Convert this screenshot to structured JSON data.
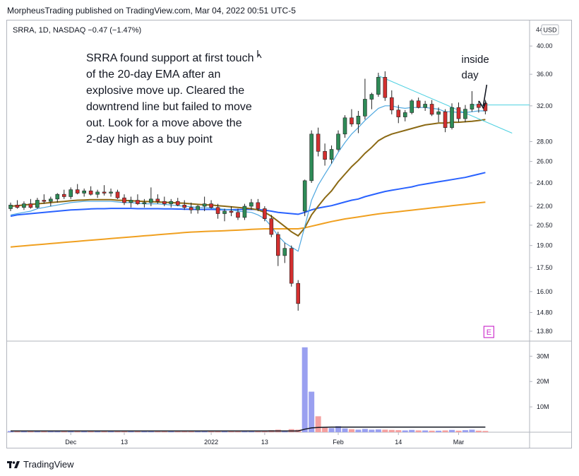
{
  "header": {
    "text": "MorpheusTrading published on TradingView.com, Mar 04, 2022 00:51 UTC-5"
  },
  "symbol_line": "SRRA, 1D, NASDAQ  −0.47 (−1.47%)",
  "currency_badge": "USD",
  "currency_prefix": "44",
  "annotation": {
    "lines": [
      "SRRA found support at first touch",
      "of the 20-day EMA after an",
      "explosive move up.  Cleared the",
      "downtrend line but failed to move",
      "out.  Look for a move above the",
      "2-day high as a buy point"
    ]
  },
  "callout": {
    "lines": [
      "inside",
      "day"
    ]
  },
  "earnings_marker": "E",
  "footer": {
    "brand": "TradingView",
    "logo_icon": "tradingview-logo-icon"
  },
  "colors": {
    "up": "#2e8b57",
    "down": "#d32f2f",
    "ema10": "#4fa8e0",
    "ema20": "#8b6914",
    "ema50": "#2962ff",
    "ema200": "#f0a020",
    "trendline": "#4dd0e1",
    "vol_up": "#9aa0f0",
    "vol_down": "#f4a0a0",
    "earnings": "#cc33cc"
  },
  "chart_data": {
    "type": "candlestick",
    "yscale": "log",
    "ylim": [
      13.3,
      44
    ],
    "y_ticks": [
      40.0,
      36.0,
      32.0,
      28.0,
      26.0,
      24.0,
      22.0,
      20.5,
      19.0,
      17.5,
      16.0,
      14.8,
      13.8
    ],
    "y_tick_labels": [
      "40.00",
      "36.00",
      "32.00",
      "28.00",
      "26.00",
      "24.00",
      "22.00",
      "20.50",
      "19.00",
      "17.50",
      "16.00",
      "14.80",
      "13.80"
    ],
    "x_ticks": [
      {
        "label": "Dec",
        "index": 9
      },
      {
        "label": "13",
        "index": 17
      },
      {
        "label": "2022",
        "index": 30
      },
      {
        "label": "13",
        "index": 38
      },
      {
        "label": "Feb",
        "index": 49
      },
      {
        "label": "14",
        "index": 58
      },
      {
        "label": "Mar",
        "index": 67
      }
    ],
    "candles": [
      [
        21.8,
        22.3,
        21.6,
        22.1
      ],
      [
        22.1,
        22.5,
        21.8,
        21.9
      ],
      [
        21.9,
        22.4,
        21.7,
        22.2
      ],
      [
        22.2,
        22.6,
        21.8,
        21.9
      ],
      [
        21.9,
        22.7,
        21.8,
        22.5
      ],
      [
        22.5,
        23.0,
        22.2,
        22.4
      ],
      [
        22.4,
        22.8,
        22.0,
        22.6
      ],
      [
        22.6,
        23.1,
        22.3,
        23.0
      ],
      [
        23.0,
        23.4,
        22.6,
        22.8
      ],
      [
        22.8,
        23.6,
        22.6,
        23.4
      ],
      [
        23.4,
        23.9,
        23.0,
        23.1
      ],
      [
        23.1,
        23.5,
        22.8,
        23.3
      ],
      [
        23.3,
        23.7,
        22.9,
        23.0
      ],
      [
        23.0,
        23.4,
        22.7,
        23.2
      ],
      [
        23.2,
        23.8,
        22.9,
        23.1
      ],
      [
        23.1,
        23.5,
        22.8,
        23.2
      ],
      [
        23.2,
        23.4,
        22.6,
        22.7
      ],
      [
        22.7,
        23.0,
        22.1,
        22.3
      ],
      [
        22.3,
        22.8,
        21.9,
        22.5
      ],
      [
        22.5,
        23.0,
        22.1,
        22.2
      ],
      [
        22.2,
        22.6,
        21.9,
        22.3
      ],
      [
        22.3,
        23.6,
        22.0,
        22.6
      ],
      [
        22.6,
        23.0,
        22.2,
        22.4
      ],
      [
        22.4,
        22.8,
        22.0,
        22.2
      ],
      [
        22.2,
        22.6,
        21.9,
        22.4
      ],
      [
        22.4,
        22.7,
        22.0,
        22.1
      ],
      [
        22.1,
        22.5,
        21.7,
        21.9
      ],
      [
        21.9,
        22.3,
        21.4,
        21.7
      ],
      [
        21.7,
        22.1,
        21.4,
        22.0
      ],
      [
        22.0,
        22.8,
        21.6,
        22.2
      ],
      [
        22.2,
        22.5,
        21.8,
        21.9
      ],
      [
        21.9,
        22.2,
        21.0,
        21.4
      ],
      [
        21.4,
        21.8,
        20.8,
        21.6
      ],
      [
        21.6,
        22.0,
        21.2,
        21.5
      ],
      [
        21.5,
        21.8,
        20.9,
        21.1
      ],
      [
        21.1,
        22.2,
        20.9,
        22.0
      ],
      [
        22.0,
        22.6,
        21.7,
        22.3
      ],
      [
        22.3,
        22.6,
        21.6,
        21.8
      ],
      [
        21.8,
        22.0,
        20.8,
        21.0
      ],
      [
        21.0,
        21.3,
        19.6,
        19.8
      ],
      [
        19.8,
        20.0,
        17.6,
        18.3
      ],
      [
        18.3,
        19.2,
        17.8,
        18.8
      ],
      [
        18.8,
        19.0,
        16.3,
        16.5
      ],
      [
        16.5,
        16.7,
        14.9,
        15.3
      ],
      [
        21.6,
        24.3,
        21.2,
        24.2
      ],
      [
        24.2,
        29.2,
        24.0,
        28.8
      ],
      [
        28.8,
        29.5,
        26.5,
        27.0
      ],
      [
        27.0,
        27.8,
        25.6,
        26.2
      ],
      [
        26.2,
        27.6,
        25.8,
        27.2
      ],
      [
        27.2,
        29.2,
        27.0,
        28.8
      ],
      [
        28.8,
        30.9,
        28.4,
        30.6
      ],
      [
        30.6,
        31.6,
        29.6,
        29.9
      ],
      [
        29.9,
        31.4,
        28.9,
        30.8
      ],
      [
        30.8,
        35.4,
        30.4,
        32.8
      ],
      [
        32.8,
        33.6,
        31.6,
        33.4
      ],
      [
        33.4,
        36.2,
        33.1,
        35.6
      ],
      [
        35.6,
        36.4,
        32.6,
        33.0
      ],
      [
        33.0,
        33.9,
        31.0,
        31.5
      ],
      [
        31.5,
        32.1,
        30.0,
        30.7
      ],
      [
        30.7,
        31.5,
        30.2,
        31.2
      ],
      [
        31.2,
        32.8,
        31.0,
        32.6
      ],
      [
        32.6,
        33.0,
        31.7,
        31.8
      ],
      [
        31.8,
        32.6,
        31.4,
        32.2
      ],
      [
        32.2,
        32.7,
        30.8,
        31.0
      ],
      [
        31.0,
        31.8,
        30.1,
        31.3
      ],
      [
        31.3,
        31.6,
        29.0,
        29.5
      ],
      [
        29.5,
        32.3,
        29.3,
        31.8
      ],
      [
        31.8,
        32.4,
        30.1,
        30.5
      ],
      [
        30.5,
        32.1,
        30.1,
        31.6
      ],
      [
        31.6,
        33.8,
        31.3,
        32.2
      ],
      [
        32.2,
        32.6,
        31.2,
        31.8
      ],
      [
        32.3,
        32.7,
        31.0,
        31.4
      ]
    ],
    "ema10": [
      21.3,
      21.4,
      21.5,
      21.6,
      21.8,
      21.9,
      22.0,
      22.1,
      22.2,
      22.3,
      22.35,
      22.4,
      22.4,
      22.4,
      22.4,
      22.4,
      22.35,
      22.3,
      22.3,
      22.25,
      22.2,
      22.2,
      22.2,
      22.15,
      22.1,
      22.05,
      22.0,
      21.95,
      21.9,
      21.9,
      21.85,
      21.8,
      21.75,
      21.7,
      21.6,
      21.55,
      21.5,
      21.3,
      21.0,
      20.4,
      19.7,
      19.2,
      18.9,
      18.6,
      20.4,
      22.5,
      23.8,
      24.8,
      25.8,
      26.9,
      27.9,
      28.8,
      29.5,
      30.3,
      31.0,
      31.7,
      32.0,
      32.0,
      31.8,
      31.7,
      31.8,
      31.8,
      31.8,
      31.7,
      31.6,
      31.3,
      31.3,
      31.2,
      31.2,
      31.3,
      31.4,
      31.4
    ],
    "ema20": [
      22.0,
      22.05,
      22.1,
      22.15,
      22.2,
      22.25,
      22.3,
      22.35,
      22.4,
      22.45,
      22.5,
      22.52,
      22.55,
      22.55,
      22.55,
      22.55,
      22.5,
      22.48,
      22.45,
      22.42,
      22.4,
      22.38,
      22.35,
      22.33,
      22.3,
      22.27,
      22.25,
      22.2,
      22.15,
      22.12,
      22.1,
      22.05,
      22.0,
      21.95,
      21.9,
      21.85,
      21.8,
      21.7,
      21.5,
      21.2,
      20.8,
      20.4,
      20.0,
      19.7,
      20.3,
      21.3,
      22.0,
      22.7,
      23.3,
      24.1,
      24.8,
      25.5,
      26.1,
      26.8,
      27.4,
      28.1,
      28.5,
      28.8,
      29.0,
      29.2,
      29.4,
      29.6,
      29.8,
      29.9,
      30.0,
      30.0,
      30.1,
      30.1,
      30.15,
      30.2,
      30.3,
      30.4
    ],
    "ema50": [
      21.2,
      21.3,
      21.35,
      21.4,
      21.45,
      21.5,
      21.55,
      21.6,
      21.65,
      21.7,
      21.72,
      21.75,
      21.78,
      21.8,
      21.8,
      21.82,
      21.82,
      21.82,
      21.82,
      21.8,
      21.8,
      21.8,
      21.8,
      21.78,
      21.78,
      21.77,
      21.76,
      21.75,
      21.74,
      21.74,
      21.74,
      21.73,
      21.72,
      21.72,
      21.73,
      21.74,
      21.75,
      21.73,
      21.68,
      21.6,
      21.5,
      21.45,
      21.4,
      21.35,
      21.5,
      21.7,
      21.85,
      21.95,
      22.05,
      22.2,
      22.35,
      22.5,
      22.6,
      22.8,
      22.95,
      23.1,
      23.25,
      23.35,
      23.45,
      23.55,
      23.65,
      23.8,
      23.9,
      24.0,
      24.1,
      24.2,
      24.3,
      24.4,
      24.5,
      24.65,
      24.8,
      24.95
    ],
    "ema200": [
      18.9,
      18.94,
      18.98,
      19.02,
      19.06,
      19.1,
      19.14,
      19.18,
      19.22,
      19.26,
      19.3,
      19.34,
      19.38,
      19.42,
      19.46,
      19.5,
      19.54,
      19.58,
      19.62,
      19.66,
      19.7,
      19.74,
      19.78,
      19.82,
      19.86,
      19.9,
      19.94,
      19.98,
      20.0,
      20.02,
      20.04,
      20.06,
      20.08,
      20.1,
      20.12,
      20.15,
      20.18,
      20.2,
      20.22,
      20.22,
      20.22,
      20.22,
      20.22,
      20.22,
      20.3,
      20.42,
      20.54,
      20.66,
      20.78,
      20.88,
      20.98,
      21.06,
      21.14,
      21.22,
      21.3,
      21.38,
      21.44,
      21.5,
      21.56,
      21.62,
      21.68,
      21.74,
      21.8,
      21.86,
      21.92,
      21.98,
      22.04,
      22.1,
      22.16,
      22.22,
      22.28,
      22.34
    ],
    "trendline": {
      "start": [
        55,
        35.8
      ],
      "end": [
        75,
        28.9
      ]
    },
    "resistance_line": {
      "price": 32.1,
      "start_index": 69
    },
    "volume_ticks": [
      {
        "value": 30,
        "label": "30M"
      },
      {
        "value": 20,
        "label": "20M"
      },
      {
        "value": 10,
        "label": "10M"
      }
    ],
    "volume_ylim": [
      0,
      34
    ],
    "volume": [
      0.5,
      0.4,
      0.5,
      0.4,
      0.5,
      0.4,
      0.5,
      0.4,
      0.5,
      0.4,
      0.5,
      0.4,
      0.5,
      0.4,
      0.4,
      0.4,
      0.5,
      0.4,
      0.4,
      0.4,
      0.4,
      0.6,
      0.4,
      0.4,
      0.4,
      0.4,
      0.4,
      0.4,
      0.4,
      0.5,
      0.4,
      0.5,
      0.4,
      0.4,
      0.4,
      0.4,
      0.4,
      0.4,
      0.5,
      0.8,
      1.0,
      0.6,
      1.2,
      1.0,
      33.5,
      16.0,
      6.3,
      2.0,
      1.6,
      2.4,
      1.5,
      1.2,
      1.0,
      1.3,
      1.0,
      1.1,
      1.0,
      0.9,
      0.8,
      0.7,
      0.9,
      0.7,
      0.7,
      0.6,
      0.6,
      0.7,
      0.9,
      0.6,
      0.8,
      1.0,
      0.6,
      0.5
    ],
    "volume_avg": [
      0.5,
      0.5,
      0.5,
      0.5,
      0.5,
      0.5,
      0.5,
      0.5,
      0.5,
      0.5,
      0.5,
      0.5,
      0.5,
      0.5,
      0.5,
      0.5,
      0.5,
      0.5,
      0.5,
      0.5,
      0.5,
      0.5,
      0.5,
      0.5,
      0.5,
      0.5,
      0.5,
      0.5,
      0.5,
      0.5,
      0.5,
      0.5,
      0.5,
      0.5,
      0.5,
      0.5,
      0.5,
      0.5,
      0.5,
      0.5,
      0.5,
      0.5,
      0.5,
      0.5,
      1.2,
      1.7,
      1.9,
      1.95,
      2.0,
      2.0,
      2.0,
      2.0,
      2.0,
      2.0,
      2.0,
      2.0,
      2.0,
      2.0,
      2.0,
      2.0,
      2.0,
      2.0,
      2.0,
      2.0,
      2.0,
      2.0,
      2.0,
      2.0,
      2.0,
      2.0,
      2.0,
      2.0
    ]
  }
}
